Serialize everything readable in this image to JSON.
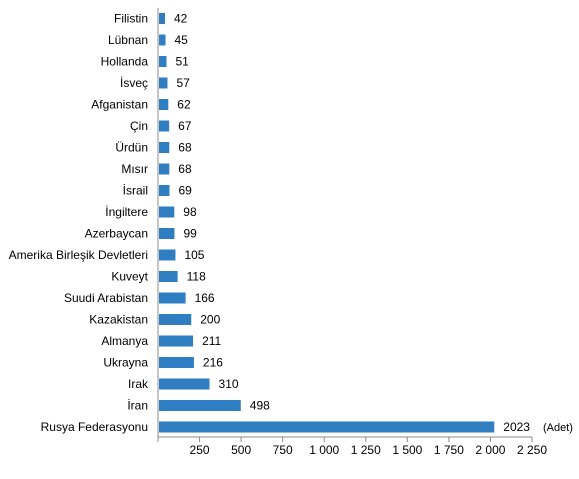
{
  "chart_data": {
    "type": "bar",
    "orientation": "horizontal",
    "categories": [
      "Filistin",
      "Lübnan",
      "Hollanda",
      "İsveç",
      "Afganistan",
      "Çin",
      "Ürdün",
      "Mısır",
      "İsrail",
      "İngiltere",
      "Azerbaycan",
      "Amerika Birleşik Devletleri",
      "Kuveyt",
      "Suudi Arabistan",
      "Kazakistan",
      "Almanya",
      "Ukrayna",
      "Irak",
      "İran",
      "Rusya Federasyonu"
    ],
    "values": [
      42,
      45,
      51,
      57,
      62,
      67,
      68,
      68,
      69,
      98,
      99,
      105,
      118,
      166,
      200,
      211,
      216,
      310,
      498,
      2023
    ],
    "value_labels": [
      "42",
      "45",
      "51",
      "57",
      "62",
      "67",
      "68",
      "68",
      "69",
      "98",
      "99",
      "105",
      "118",
      "166",
      "200",
      "211",
      "216",
      "310",
      "498",
      "2023"
    ],
    "x_ticks": [
      250,
      500,
      750,
      1000,
      1250,
      1500,
      1750,
      2000,
      2250
    ],
    "x_tick_labels": [
      "250",
      "500",
      "750",
      "1 000",
      "1 250",
      "1 500",
      "1 750",
      "2 000",
      "2 250"
    ],
    "xlim": [
      0,
      2250
    ],
    "unit_label": "(Adet)",
    "bar_color": "#2e7ec1",
    "grid": false,
    "legend": false
  }
}
